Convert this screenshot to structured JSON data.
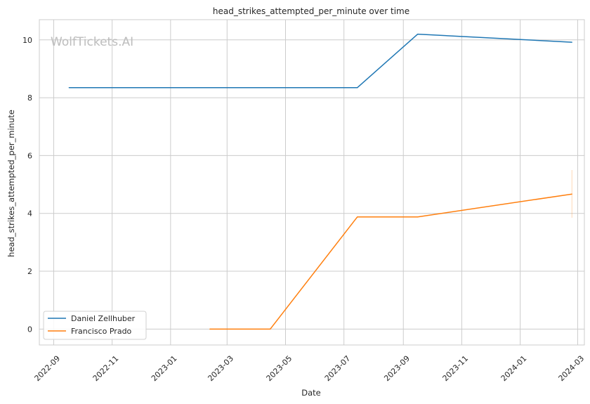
{
  "chart_data": {
    "type": "line",
    "title": "head_strikes_attempted_per_minute over time",
    "xlabel": "Date",
    "ylabel": "head_strikes_attempted_per_minute",
    "watermark": "WolfTickets.AI",
    "xlim": [
      "2022-08-17",
      "2024-03-08"
    ],
    "ylim": [
      -0.55,
      10.7
    ],
    "x_ticks": [
      "2022-09",
      "2022-11",
      "2023-01",
      "2023-03",
      "2023-05",
      "2023-07",
      "2023-09",
      "2023-11",
      "2024-01",
      "2024-03"
    ],
    "y_ticks": [
      0,
      2,
      4,
      6,
      8,
      10
    ],
    "grid": true,
    "legend_position": "lower-left",
    "series": [
      {
        "name": "Daniel Zellhuber",
        "color": "#1f77b4",
        "x": [
          "2022-09-17",
          "2023-07-15",
          "2023-09-16",
          "2024-02-24"
        ],
        "y": [
          8.35,
          8.35,
          10.2,
          9.92
        ]
      },
      {
        "name": "Francisco Prado",
        "color": "#ff7f0e",
        "x": [
          "2023-02-11",
          "2023-04-15",
          "2023-07-15",
          "2023-09-16",
          "2024-02-24"
        ],
        "y": [
          0.0,
          0.0,
          3.88,
          3.88,
          4.67
        ],
        "error_bar": {
          "x": "2024-02-24",
          "low": 3.85,
          "high": 5.5
        }
      }
    ]
  }
}
